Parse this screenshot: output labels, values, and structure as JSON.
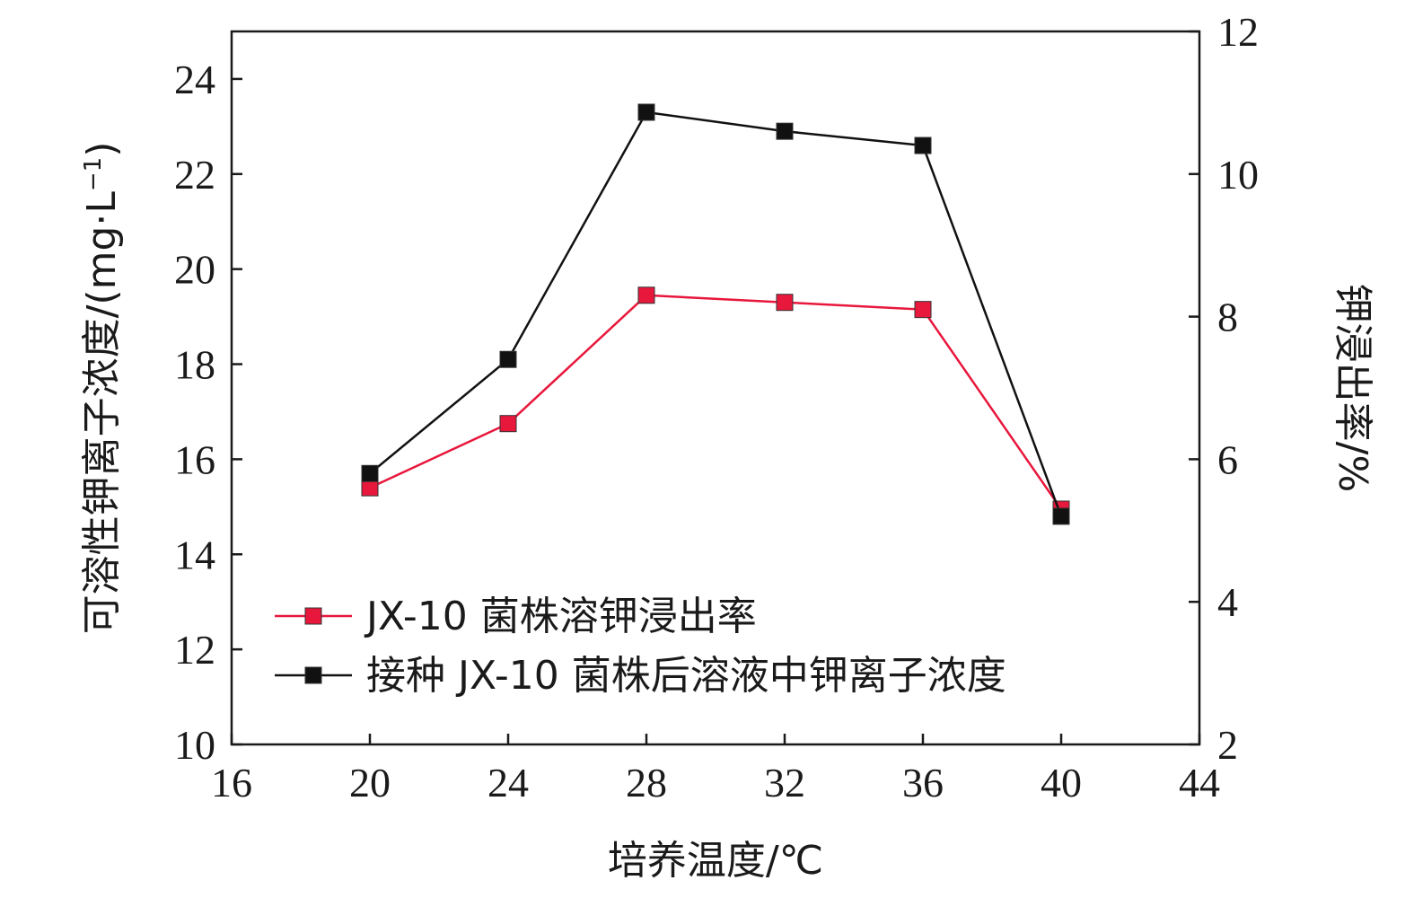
{
  "chart_data": {
    "type": "line",
    "xlabel": "培养温度/℃",
    "ylabel_left": "可溶性钾离子浓度/(mg·L",
    "ylabel_left_sup": "−1",
    "ylabel_left_close": ")",
    "ylabel_right": "钾浸出率/%",
    "xlim": [
      16,
      44
    ],
    "xticks": [
      16,
      20,
      24,
      28,
      32,
      36,
      40,
      44
    ],
    "ylim_left": [
      10,
      25
    ],
    "yticks_left": [
      10,
      12,
      14,
      16,
      18,
      20,
      22,
      24
    ],
    "ylim_right": [
      2,
      12
    ],
    "yticks_right": [
      2,
      4,
      6,
      8,
      10,
      12
    ],
    "x": [
      20,
      24,
      28,
      32,
      36,
      40
    ],
    "grid": false,
    "legend_position": "lower-left",
    "series": [
      {
        "name": "JX-10 菌株溶钾浸出率",
        "axis": "right",
        "color": "#e8173c",
        "marker": "square",
        "values": [
          5.6,
          6.5,
          8.3,
          8.2,
          8.1,
          5.3
        ]
      },
      {
        "name": "接种 JX-10 菌株后溶液中钾离子浓度",
        "axis": "left",
        "color": "#111111",
        "marker": "square",
        "values": [
          15.7,
          18.1,
          23.3,
          22.9,
          22.6,
          14.8
        ]
      }
    ]
  }
}
